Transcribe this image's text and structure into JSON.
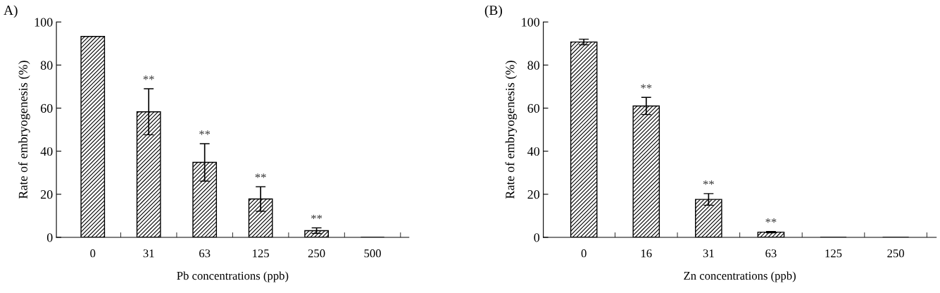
{
  "chart_data": [
    {
      "type": "bar",
      "title": "A)",
      "xlabel": "Pb concentrations (ppb)",
      "ylabel": "Rate of embryogenesis (%)",
      "categories": [
        "0",
        "31",
        "63",
        "125",
        "250",
        "500"
      ],
      "values": [
        93.3,
        58.3,
        34.8,
        17.8,
        3.1,
        0
      ],
      "errors": [
        null,
        10.7,
        8.7,
        5.7,
        1.3,
        null
      ],
      "ylim": [
        0,
        100
      ],
      "yticks": [
        0,
        20,
        40,
        60,
        80,
        100
      ],
      "grid": false,
      "annotations": [
        {
          "text": "**",
          "x": "31",
          "y": 58.3
        },
        {
          "text": "**",
          "x": "63",
          "y": 34.8
        },
        {
          "text": "**",
          "x": "125",
          "y": 17.8
        },
        {
          "text": "**",
          "x": "250",
          "y": 3.1
        }
      ]
    },
    {
      "type": "bar",
      "title": "(B)",
      "xlabel": "Zn concentrations (ppb)",
      "ylabel": "Rate of embryogenesis (%)",
      "categories": [
        "0",
        "16",
        "31",
        "63",
        "125",
        "250"
      ],
      "values": [
        90.7,
        61.0,
        17.6,
        2.4,
        0,
        0
      ],
      "errors": [
        1.3,
        4.0,
        2.7,
        0.3,
        null,
        null
      ],
      "ylim": [
        0,
        100
      ],
      "yticks": [
        0,
        20,
        40,
        60,
        80,
        100
      ],
      "grid": false,
      "annotations": [
        {
          "text": "**",
          "x": "16",
          "y": 61.0
        },
        {
          "text": "**",
          "x": "31",
          "y": 17.6
        },
        {
          "text": "**",
          "x": "63",
          "y": 2.4
        }
      ]
    }
  ]
}
